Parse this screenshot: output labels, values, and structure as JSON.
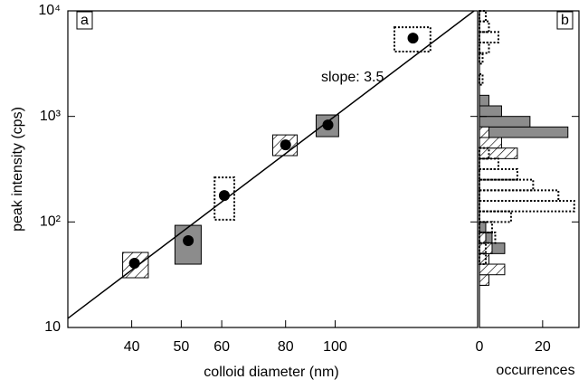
{
  "chart_data": [
    {
      "type": "scatter",
      "label": "a",
      "xlabel": "colloid diameter (nm)",
      "ylabel": "peak intensity (cps)",
      "xscale": "log",
      "yscale": "log",
      "xlim": [
        30,
        190
      ],
      "ylim": [
        10,
        10000
      ],
      "xticks": [
        40,
        50,
        60,
        80,
        100
      ],
      "yticks": [
        10,
        {
          "value": 100,
          "label": "10²"
        },
        {
          "value": 1000,
          "label": "10³"
        },
        {
          "value": 10000,
          "label": "10⁴"
        }
      ],
      "x": [
        40.5,
        51.6,
        60.7,
        80,
        96.8,
        142
      ],
      "y": [
        40.6,
        66.5,
        178,
        538,
        830,
        5520
      ],
      "boxes": {
        "xlow": [
          38.4,
          48.6,
          58.1,
          75.5,
          91.8,
          130.6
        ],
        "xhigh": [
          43.1,
          54.7,
          63.5,
          84.3,
          101.6,
          153.6
        ],
        "ylow": [
          29.6,
          39.8,
          105,
          425,
          643,
          4110
        ],
        "yhigh": [
          51.4,
          92.9,
          264,
          668,
          1033,
          7000
        ],
        "style": [
          "hatched",
          "gray",
          "dotted",
          "hatched",
          "gray",
          "dotted"
        ]
      },
      "fit_line": {
        "x": [
          30,
          187
        ],
        "y": [
          12.2,
          10000
        ]
      },
      "annotation": "slope: 3.5"
    },
    {
      "type": "histogram",
      "label": "b",
      "xlabel": "occurrences",
      "orientation": "horizontal",
      "yscale": "log",
      "xlim": [
        0,
        31.5
      ],
      "xticks": [
        0,
        20
      ],
      "bins": [
        25.1,
        31.6,
        39.8,
        50.1,
        63.1,
        79.4,
        100,
        125.9,
        158.5,
        199.5,
        251.2,
        316.2,
        398.1,
        501.2,
        631,
        794.3,
        1000,
        1258.9,
        1584.9,
        1995.3,
        2511.9,
        3162.3,
        3981.1,
        5011.9,
        6309.6,
        7943.3,
        10000
      ],
      "series": [
        {
          "style": "gray",
          "color": "#8c8c8c",
          "values": [
            2,
            3,
            3,
            8,
            4,
            2,
            0,
            0,
            0,
            0,
            0,
            0,
            1,
            4,
            28,
            16,
            7,
            3,
            0,
            0,
            0,
            0,
            0,
            0,
            0,
            0
          ]
        },
        {
          "style": "hatched",
          "color": "#000000",
          "values": [
            3,
            8,
            3,
            4,
            2,
            0,
            0,
            0,
            0,
            0,
            0,
            0,
            12,
            7,
            3,
            0,
            0,
            0,
            0,
            0,
            0,
            0,
            0,
            0,
            0,
            0
          ]
        },
        {
          "style": "dotted",
          "color": "#000000",
          "values": [
            0,
            0,
            2,
            2,
            5,
            4,
            10,
            30,
            25,
            17,
            12,
            6,
            3,
            0,
            0,
            0,
            0,
            0,
            0,
            1,
            0,
            1,
            3,
            6,
            3,
            2
          ]
        }
      ]
    }
  ]
}
